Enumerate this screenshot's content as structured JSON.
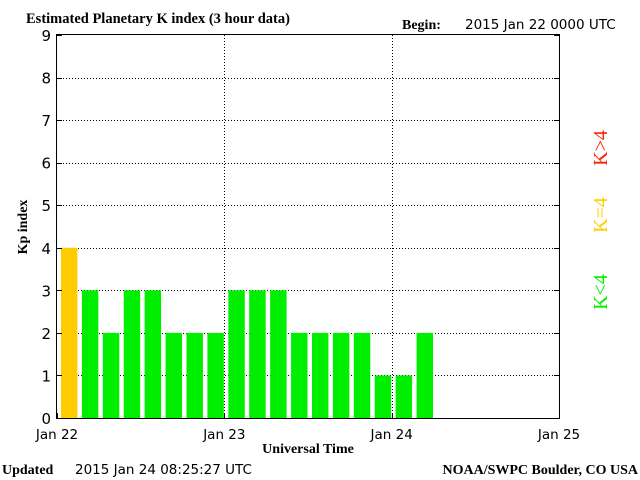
{
  "header": {
    "title": "Estimated Planetary K index (3 hour data)",
    "begin_label": "Begin:",
    "begin_value": "2015 Jan 22 0000 UTC"
  },
  "footer": {
    "updated_label": "Updated",
    "updated_value": "2015 Jan 24 08:25:27 UTC",
    "credit": "NOAA/SWPC Boulder, CO USA"
  },
  "legend": {
    "gt4": {
      "label": "K>4",
      "color": "#ff2000"
    },
    "eq4": {
      "label": "K=4",
      "color": "#ffcc00"
    },
    "lt4": {
      "label": "K<4",
      "color": "#00ee00"
    }
  },
  "chart_data": {
    "type": "bar",
    "title": "Estimated Planetary K index (3 hour data)",
    "xlabel": "Universal Time",
    "ylabel": "Kp index",
    "ylim": [
      0,
      9
    ],
    "yticks": [
      "0",
      "1",
      "2",
      "3",
      "4",
      "5",
      "6",
      "7",
      "8",
      "9"
    ],
    "xticks": [
      "Jan 22",
      "Jan 23",
      "Jan 24",
      "Jan 25"
    ],
    "x_slots": 24,
    "grid": true,
    "values": [
      4,
      3,
      2,
      3,
      3,
      2,
      2,
      2,
      3,
      3,
      3,
      2,
      2,
      2,
      2,
      1,
      1,
      2
    ],
    "colors": {
      "lt4": "#00ee00",
      "eq4": "#ffcc00",
      "gt4": "#ff2000"
    }
  }
}
